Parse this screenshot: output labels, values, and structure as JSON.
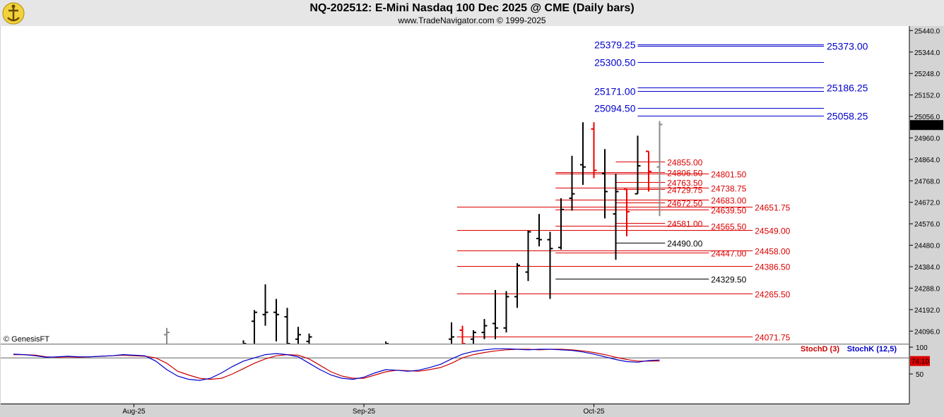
{
  "header": {
    "title": "NQ-202512:  E-Mini Nasdaq 100 Dec 2025 @ CME  (Daily bars)",
    "subtitle": "www.TradeNavigator.com © 1999-2025"
  },
  "colors": {
    "background": "#ffffff",
    "bar": "#000000",
    "down_bar": "#ee0000",
    "support": "#dd0000",
    "target": "#0000cc",
    "stoch_d": "#cc0000",
    "stoch_k": "#0000cc"
  },
  "watermark": "© GenesisFT",
  "chart_data": {
    "type": "ohlc",
    "price_axis": {
      "ticks": [
        "25440.0",
        "25344.0",
        "25248.0",
        "25152.0",
        "25056.0",
        "24960.0",
        "24864.0",
        "24768.0",
        "24672.0",
        "24576.0",
        "24480.0",
        "24384.0",
        "24288.0",
        "24192.0",
        "24096.0"
      ],
      "ylim": [
        24040,
        25460
      ],
      "last_price": "25017.50"
    },
    "x_axis": {
      "labels": [
        {
          "label": "Aug-25",
          "index": 11
        },
        {
          "label": "Sep-25",
          "index": 32
        },
        {
          "label": "Oct-25",
          "index": 53
        }
      ]
    },
    "bars": [
      {
        "i": 0,
        "o": 24020,
        "h": 24030,
        "l": 24010,
        "c": 24020,
        "color": "black"
      },
      {
        "i": 14,
        "o": 24080,
        "h": 24110,
        "l": 24020,
        "c": 24090,
        "color": "gray"
      },
      {
        "i": 21,
        "o": 24030,
        "h": 24055,
        "l": 24020,
        "c": 24040,
        "color": "black"
      },
      {
        "i": 22,
        "o": 24140,
        "h": 24190,
        "l": 24020,
        "c": 24180,
        "color": "black"
      },
      {
        "i": 23,
        "o": 24170,
        "h": 24305,
        "l": 24120,
        "c": 24180,
        "color": "black"
      },
      {
        "i": 24,
        "o": 24180,
        "h": 24240,
        "l": 24050,
        "c": 24170,
        "color": "black"
      },
      {
        "i": 25,
        "o": 24160,
        "h": 24200,
        "l": 24020,
        "c": 24040,
        "color": "black"
      },
      {
        "i": 26,
        "o": 24060,
        "h": 24115,
        "l": 24020,
        "c": 24080,
        "color": "black"
      },
      {
        "i": 27,
        "o": 24050,
        "h": 24085,
        "l": 24020,
        "c": 24070,
        "color": "black"
      },
      {
        "i": 34,
        "o": 24030,
        "h": 24050,
        "l": 24020,
        "c": 24040,
        "color": "black"
      },
      {
        "i": 40,
        "o": 24060,
        "h": 24135,
        "l": 24020,
        "c": 24070,
        "color": "black"
      },
      {
        "i": 41,
        "o": 24100,
        "h": 24120,
        "l": 24030,
        "c": 24040,
        "color": "red"
      },
      {
        "i": 42,
        "o": 24060,
        "h": 24100,
        "l": 24020,
        "c": 24090,
        "color": "black"
      },
      {
        "i": 43,
        "o": 24090,
        "h": 24150,
        "l": 24060,
        "c": 24120,
        "color": "black"
      },
      {
        "i": 44,
        "o": 24130,
        "h": 24280,
        "l": 24060,
        "c": 24110,
        "color": "black"
      },
      {
        "i": 45,
        "o": 24110,
        "h": 24275,
        "l": 24090,
        "c": 24250,
        "color": "black"
      },
      {
        "i": 46,
        "o": 24250,
        "h": 24400,
        "l": 24200,
        "c": 24390,
        "color": "black"
      },
      {
        "i": 47,
        "o": 24360,
        "h": 24545,
        "l": 24320,
        "c": 24540,
        "color": "black"
      },
      {
        "i": 48,
        "o": 24510,
        "h": 24620,
        "l": 24475,
        "c": 24505,
        "color": "black"
      },
      {
        "i": 49,
        "o": 24505,
        "h": 24540,
        "l": 24240,
        "c": 24465,
        "color": "black"
      },
      {
        "i": 50,
        "o": 24470,
        "h": 24690,
        "l": 24460,
        "c": 24640,
        "color": "black"
      },
      {
        "i": 51,
        "o": 24690,
        "h": 24880,
        "l": 24635,
        "c": 24710,
        "color": "black"
      },
      {
        "i": 52,
        "o": 24840,
        "h": 25030,
        "l": 24750,
        "c": 24830,
        "color": "black"
      },
      {
        "i": 53,
        "o": 25000,
        "h": 25030,
        "l": 24780,
        "c": 24815,
        "color": "red"
      },
      {
        "i": 54,
        "o": 24800,
        "h": 24910,
        "l": 24600,
        "c": 24720,
        "color": "black"
      },
      {
        "i": 55,
        "o": 24620,
        "h": 24800,
        "l": 24415,
        "c": 24720,
        "color": "black"
      },
      {
        "i": 56,
        "o": 24730,
        "h": 24730,
        "l": 24520,
        "c": 24630,
        "color": "red"
      },
      {
        "i": 57,
        "o": 24710,
        "h": 24970,
        "l": 24710,
        "c": 24835,
        "color": "black"
      },
      {
        "i": 58,
        "o": 24900,
        "h": 24900,
        "l": 24720,
        "c": 24810,
        "color": "red"
      },
      {
        "i": 59,
        "o": 24830,
        "h": 25035,
        "l": 24610,
        "c": 25020,
        "color": "gray"
      }
    ],
    "levels": [
      {
        "label": "25379.25",
        "side": "blue",
        "y": 25379.25,
        "x0": 57,
        "x1": 74,
        "label_pos": "left"
      },
      {
        "label": "25373.00",
        "side": "blue",
        "y": 25373.0,
        "x0": 57,
        "x1": 74,
        "label_pos": "right"
      },
      {
        "label": "25300.50",
        "side": "blue",
        "y": 25300.5,
        "x0": 57,
        "x1": 74,
        "label_pos": "left"
      },
      {
        "label": "25186.25",
        "side": "blue",
        "y": 25186.25,
        "x0": 57,
        "x1": 74,
        "label_pos": "right"
      },
      {
        "label": "25171.00",
        "side": "blue",
        "y": 25171.0,
        "x0": 57,
        "x1": 74,
        "label_pos": "left"
      },
      {
        "label": "25094.50",
        "side": "blue",
        "y": 25094.5,
        "x0": 57,
        "x1": 74,
        "label_pos": "left"
      },
      {
        "label": "25058.25",
        "side": "blue",
        "y": 25058.25,
        "x0": 57,
        "x1": 74,
        "label_pos": "right"
      },
      {
        "label": "24855.00",
        "side": "red",
        "y": 24855.0,
        "x0": 55,
        "x1": 59.5,
        "label_pos": "mid"
      },
      {
        "label": "24806.50",
        "side": "red",
        "y": 24806.5,
        "x0": 49.5,
        "x1": 59.5,
        "label_pos": "mid"
      },
      {
        "label": "24801.50",
        "side": "red",
        "y": 24801.5,
        "x0": 49.5,
        "x1": 63.5,
        "label_pos": "far"
      },
      {
        "label": "24763.50",
        "side": "red",
        "y": 24763.5,
        "x0": 55,
        "x1": 59.5,
        "label_pos": "mid"
      },
      {
        "label": "24738.75",
        "side": "red",
        "y": 24738.75,
        "x0": 49.5,
        "x1": 63.5,
        "label_pos": "far"
      },
      {
        "label": "24729.75",
        "side": "red",
        "y": 24729.75,
        "x0": 55,
        "x1": 59.5,
        "label_pos": "mid"
      },
      {
        "label": "24683.00",
        "side": "red",
        "y": 24683.0,
        "x0": 49.5,
        "x1": 63.5,
        "label_pos": "far"
      },
      {
        "label": "24672.50",
        "side": "red",
        "y": 24672.5,
        "x0": 55,
        "x1": 59.5,
        "label_pos": "mid"
      },
      {
        "label": "24651.75",
        "side": "red",
        "y": 24651.75,
        "x0": 40.5,
        "x1": 67.5,
        "label_pos": "outer"
      },
      {
        "label": "24639.50",
        "side": "red",
        "y": 24639.5,
        "x0": 49.5,
        "x1": 63.5,
        "label_pos": "far"
      },
      {
        "label": "24581.00",
        "side": "red",
        "y": 24581.0,
        "x0": 55,
        "x1": 59.5,
        "label_pos": "mid"
      },
      {
        "label": "24565.50",
        "side": "red",
        "y": 24565.5,
        "x0": 49.5,
        "x1": 63.5,
        "label_pos": "far"
      },
      {
        "label": "24549.00",
        "side": "red",
        "y": 24549.0,
        "x0": 40.5,
        "x1": 67.5,
        "label_pos": "outer"
      },
      {
        "label": "24490.00",
        "side": "black",
        "y": 24490.0,
        "x0": 55,
        "x1": 59.5,
        "label_pos": "mid"
      },
      {
        "label": "24458.00",
        "side": "red",
        "y": 24458.0,
        "x0": 40.5,
        "x1": 67.5,
        "label_pos": "outer"
      },
      {
        "label": "24447.00",
        "side": "red",
        "y": 24447.0,
        "x0": 49.5,
        "x1": 63.5,
        "label_pos": "far"
      },
      {
        "label": "24386.50",
        "side": "red",
        "y": 24386.5,
        "x0": 40.5,
        "x1": 67.5,
        "label_pos": "outer"
      },
      {
        "label": "24329.50",
        "side": "black",
        "y": 24329.5,
        "x0": 49.5,
        "x1": 63.5,
        "label_pos": "far"
      },
      {
        "label": "24265.50",
        "side": "red",
        "y": 24265.5,
        "x0": 40.5,
        "x1": 67.5,
        "label_pos": "outer"
      },
      {
        "label": "24071.75",
        "side": "red",
        "y": 24071.75,
        "x0": 40.5,
        "x1": 67.5,
        "label_pos": "outer"
      }
    ],
    "stochastic": {
      "legend_d": "StochD (3)",
      "legend_k": "StochK (12,5)",
      "ticks": [
        "100",
        "50"
      ],
      "ref_line": 80,
      "last_value": "74.10",
      "ylim": [
        0,
        100
      ],
      "d_values": [
        86,
        86,
        85,
        82,
        81,
        82,
        81,
        82,
        83,
        84,
        85,
        84,
        83,
        80,
        70,
        55,
        48,
        42,
        40,
        42,
        50,
        60,
        70,
        78,
        84,
        86,
        85,
        78,
        66,
        54,
        46,
        42,
        42,
        48,
        54,
        57,
        56,
        55,
        58,
        62,
        70,
        80,
        86,
        90,
        93,
        95,
        96,
        96,
        95,
        96,
        96,
        95,
        93,
        90,
        86,
        81,
        77,
        74,
        74,
        74.1
      ],
      "k_values": [
        87,
        86,
        84,
        81,
        82,
        83,
        82,
        82,
        83,
        84,
        86,
        85,
        84,
        74,
        58,
        46,
        40,
        38,
        42,
        52,
        64,
        74,
        80,
        86,
        88,
        86,
        82,
        70,
        58,
        48,
        42,
        40,
        44,
        52,
        58,
        57,
        55,
        57,
        62,
        68,
        78,
        87,
        92,
        95,
        97,
        97,
        96,
        95,
        96,
        96,
        95,
        94,
        91,
        87,
        82,
        77,
        73,
        72,
        75,
        76
      ]
    }
  }
}
